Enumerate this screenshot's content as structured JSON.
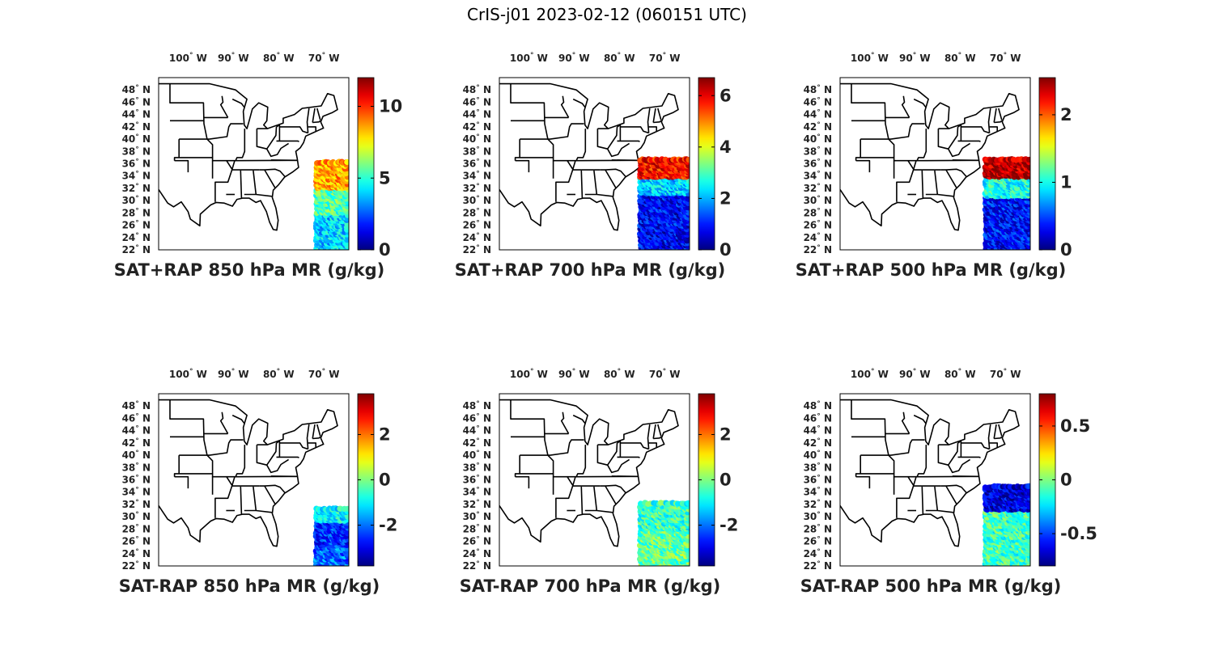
{
  "figure": {
    "title": "CrIS-j01 2023-02-12 (060151 UTC)"
  },
  "map": {
    "lon_range": [
      -106.5,
      -64.5
    ],
    "lat_range": [
      22,
      50
    ],
    "lon_ticks": [
      {
        "value": -100,
        "num": "100",
        "hemi": "W"
      },
      {
        "value": -90,
        "num": "90",
        "hemi": "W"
      },
      {
        "value": -80,
        "num": "80",
        "hemi": "W"
      },
      {
        "value": -70,
        "num": "70",
        "hemi": "W"
      }
    ],
    "lat_ticks": [
      {
        "value": 22,
        "num": "22",
        "hemi": "N"
      },
      {
        "value": 24,
        "num": "24",
        "hemi": "N"
      },
      {
        "value": 26,
        "num": "26",
        "hemi": "N"
      },
      {
        "value": 28,
        "num": "28",
        "hemi": "N"
      },
      {
        "value": 30,
        "num": "30",
        "hemi": "N"
      },
      {
        "value": 32,
        "num": "32",
        "hemi": "N"
      },
      {
        "value": 34,
        "num": "34",
        "hemi": "N"
      },
      {
        "value": 36,
        "num": "36",
        "hemi": "N"
      },
      {
        "value": 38,
        "num": "38",
        "hemi": "N"
      },
      {
        "value": 40,
        "num": "40",
        "hemi": "N"
      },
      {
        "value": 42,
        "num": "42",
        "hemi": "N"
      },
      {
        "value": 44,
        "num": "44",
        "hemi": "N"
      },
      {
        "value": 46,
        "num": "46",
        "hemi": "N"
      },
      {
        "value": 48,
        "num": "48",
        "hemi": "N"
      }
    ],
    "colormap": "jet"
  },
  "chart_data": [
    {
      "type": "scatter",
      "title": "SAT+RAP 850 hPa MR (g/kg)",
      "clim": [
        0,
        12
      ],
      "cbar_ticks": [
        {
          "value": 0,
          "label": "0"
        },
        {
          "value": 5,
          "label": "5"
        },
        {
          "value": 10,
          "label": "10"
        }
      ],
      "swath": {
        "lon": [
          -71.8,
          -64.5
        ],
        "lat": [
          22,
          36.5
        ]
      },
      "regions": [
        {
          "lat_min": 32,
          "lat_max": 36.5,
          "value": 8.5
        },
        {
          "lat_min": 28,
          "lat_max": 32,
          "value": 5.5
        },
        {
          "lat_min": 22,
          "lat_max": 28,
          "value": 4.0
        }
      ]
    },
    {
      "type": "scatter",
      "title": "SAT+RAP 700 hPa MR (g/kg)",
      "clim": [
        0,
        6.7
      ],
      "cbar_ticks": [
        {
          "value": 0,
          "label": "0"
        },
        {
          "value": 2,
          "label": "2"
        },
        {
          "value": 4,
          "label": "4"
        },
        {
          "value": 6,
          "label": "6"
        }
      ],
      "swath": {
        "lon": [
          -75.5,
          -64.5
        ],
        "lat": [
          22,
          37
        ]
      },
      "regions": [
        {
          "lat_min": 33.5,
          "lat_max": 37,
          "value": 5.8
        },
        {
          "lat_min": 31,
          "lat_max": 33.5,
          "value": 2.2
        },
        {
          "lat_min": 22,
          "lat_max": 31,
          "value": 0.8
        }
      ]
    },
    {
      "type": "scatter",
      "title": "SAT+RAP 500 hPa MR (g/kg)",
      "clim": [
        0,
        2.55
      ],
      "cbar_ticks": [
        {
          "value": 0,
          "label": "0"
        },
        {
          "value": 1,
          "label": "1"
        },
        {
          "value": 2,
          "label": "2"
        }
      ],
      "swath": {
        "lon": [
          -74.5,
          -64.5
        ],
        "lat": [
          22,
          36.8
        ]
      },
      "regions": [
        {
          "lat_min": 33.5,
          "lat_max": 36.8,
          "value": 2.4
        },
        {
          "lat_min": 30.5,
          "lat_max": 33.5,
          "value": 1.0
        },
        {
          "lat_min": 22,
          "lat_max": 30.5,
          "value": 0.35
        }
      ]
    },
    {
      "type": "scatter",
      "title": "SAT-RAP 850 hPa MR (g/kg)",
      "clim": [
        -3.8,
        3.8
      ],
      "cbar_ticks": [
        {
          "value": -2,
          "label": "-2"
        },
        {
          "value": 0,
          "label": "0"
        },
        {
          "value": 2,
          "label": "2"
        }
      ],
      "swath": {
        "lon": [
          -71.8,
          -64.5
        ],
        "lat": [
          22,
          31.5
        ]
      },
      "regions": [
        {
          "lat_min": 29,
          "lat_max": 31.5,
          "value": -1.0
        },
        {
          "lat_min": 25,
          "lat_max": 29,
          "value": -2.5
        },
        {
          "lat_min": 22,
          "lat_max": 25,
          "value": -2.0
        }
      ]
    },
    {
      "type": "scatter",
      "title": "SAT-RAP 700 hPa MR (g/kg)",
      "clim": [
        -3.8,
        3.8
      ],
      "cbar_ticks": [
        {
          "value": -2,
          "label": "-2"
        },
        {
          "value": 0,
          "label": "0"
        },
        {
          "value": 2,
          "label": "2"
        }
      ],
      "swath": {
        "lon": [
          -75.5,
          -64.5
        ],
        "lat": [
          22,
          32.5
        ]
      },
      "regions": [
        {
          "lat_min": 28,
          "lat_max": 32.5,
          "value": -0.5
        },
        {
          "lat_min": 22,
          "lat_max": 28,
          "value": -0.2
        }
      ]
    },
    {
      "type": "scatter",
      "title": "SAT-RAP 500 hPa MR (g/kg)",
      "clim": [
        -0.8,
        0.8
      ],
      "cbar_ticks": [
        {
          "value": -0.5,
          "label": "-0.5"
        },
        {
          "value": 0,
          "label": "0"
        },
        {
          "value": 0.5,
          "label": "0.5"
        }
      ],
      "swath": {
        "lon": [
          -74.5,
          -64.5
        ],
        "lat": [
          22,
          35
        ]
      },
      "regions": [
        {
          "lat_min": 31,
          "lat_max": 35,
          "value": -0.65
        },
        {
          "lat_min": 22,
          "lat_max": 31,
          "value": -0.1
        }
      ]
    }
  ]
}
